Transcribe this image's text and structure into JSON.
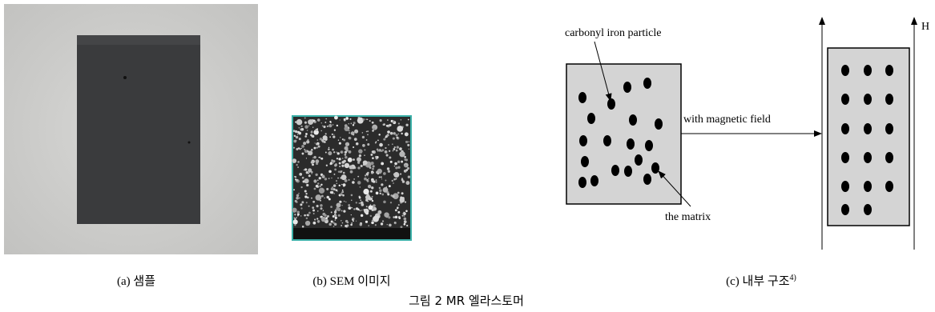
{
  "panels": [
    {
      "caption": "(a) 샘플"
    },
    {
      "caption": "(b) SEM 이미지"
    },
    {
      "caption": "(c) 내부 구조",
      "caption_sup": "4)"
    }
  ],
  "diagram": {
    "particle_label": "carbonyl iron particle",
    "field_label": "with magnetic field",
    "matrix_label": "the matrix",
    "field_symbol": "H"
  },
  "figure_caption": "그림 2 MR 엘라스토머"
}
